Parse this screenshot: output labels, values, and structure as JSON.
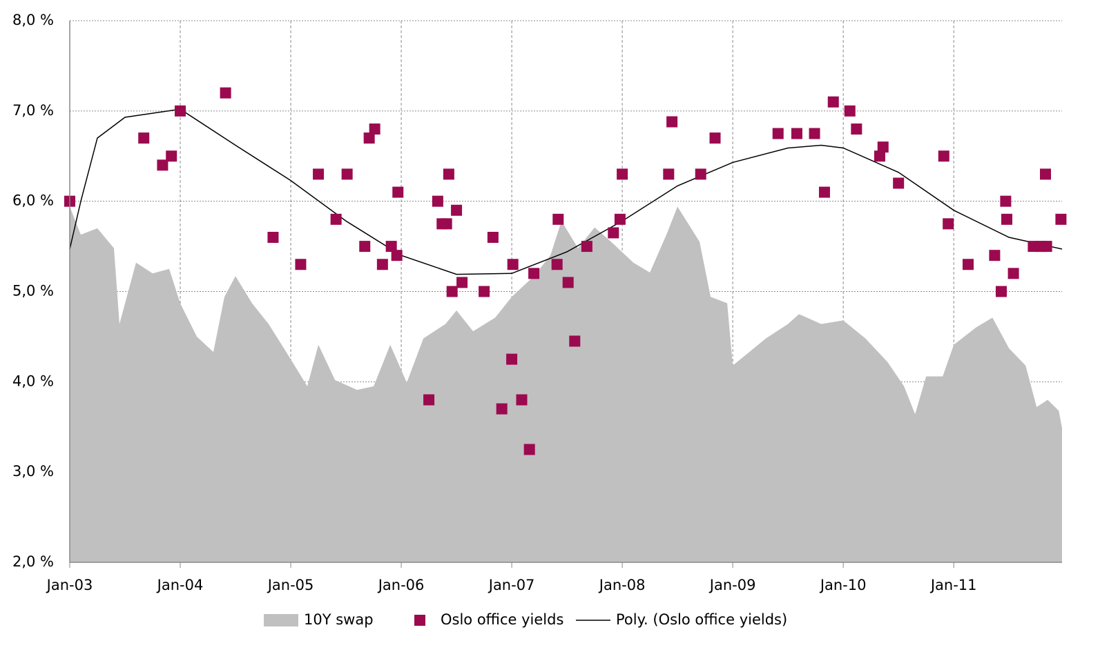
{
  "chart_data": {
    "type": "combo",
    "xlim": [
      2003,
      2011.98
    ],
    "xticks": [
      {
        "value": 2003,
        "label": "Jan-03"
      },
      {
        "value": 2004,
        "label": "Jan-04"
      },
      {
        "value": 2005,
        "label": "Jan-05"
      },
      {
        "value": 2006,
        "label": "Jan-06"
      },
      {
        "value": 2007,
        "label": "Jan-07"
      },
      {
        "value": 2008,
        "label": "Jan-08"
      },
      {
        "value": 2009,
        "label": "Jan-09"
      },
      {
        "value": 2010,
        "label": "Jan-10"
      },
      {
        "value": 2011,
        "label": "Jan-11"
      }
    ],
    "ylim": [
      2,
      8
    ],
    "yticks": [
      {
        "value": 2,
        "label": "2,0 %"
      },
      {
        "value": 3,
        "label": "3,0 %"
      },
      {
        "value": 4,
        "label": "4,0 %"
      },
      {
        "value": 5,
        "label": "5,0 %"
      },
      {
        "value": 6,
        "label": "6,0 %"
      },
      {
        "value": 7,
        "label": "7,0 %"
      },
      {
        "value": 8,
        "label": "8,0 %"
      }
    ],
    "grid": true,
    "legend": "bottom",
    "series": [
      {
        "name": "10Y swap",
        "type": "area",
        "color": "#c0c0c0",
        "x": [
          2003.0,
          2003.1,
          2003.25,
          2003.4,
          2003.45,
          2003.6,
          2003.75,
          2003.9,
          2004.0,
          2004.15,
          2004.3,
          2004.4,
          2004.5,
          2004.65,
          2004.8,
          2005.0,
          2005.15,
          2005.25,
          2005.4,
          2005.6,
          2005.75,
          2005.9,
          2006.05,
          2006.2,
          2006.4,
          2006.5,
          2006.65,
          2006.85,
          2007.0,
          2007.2,
          2007.35,
          2007.45,
          2007.6,
          2007.75,
          2007.9,
          2008.1,
          2008.25,
          2008.4,
          2008.5,
          2008.7,
          2008.8,
          2008.95,
          2009.0,
          2009.15,
          2009.3,
          2009.5,
          2009.6,
          2009.8,
          2010.0,
          2010.2,
          2010.4,
          2010.55,
          2010.65,
          2010.75,
          2010.9,
          2011.0,
          2011.2,
          2011.35,
          2011.5,
          2011.65,
          2011.75,
          2011.85,
          2011.95,
          2011.98
        ],
        "values": [
          5.94,
          5.63,
          5.7,
          5.48,
          4.64,
          5.32,
          5.2,
          5.25,
          4.87,
          4.5,
          4.33,
          4.94,
          5.17,
          4.87,
          4.64,
          4.25,
          3.95,
          4.41,
          4.02,
          3.91,
          3.95,
          4.41,
          3.99,
          4.48,
          4.64,
          4.79,
          4.56,
          4.71,
          4.94,
          5.17,
          5.4,
          5.78,
          5.48,
          5.71,
          5.55,
          5.32,
          5.21,
          5.63,
          5.94,
          5.55,
          4.94,
          4.87,
          4.18,
          4.33,
          4.48,
          4.64,
          4.75,
          4.64,
          4.68,
          4.48,
          4.22,
          3.95,
          3.64,
          4.06,
          4.06,
          4.41,
          4.6,
          4.71,
          4.37,
          4.18,
          3.72,
          3.8,
          3.68,
          3.49
        ]
      },
      {
        "name": "Oslo office yields",
        "type": "scatter",
        "color": "#9b0a4f",
        "x": [
          2003.0,
          2003.67,
          2003.84,
          2003.92,
          2004.0,
          2004.41,
          2004.84,
          2005.09,
          2005.25,
          2005.41,
          2005.51,
          2005.67,
          2005.71,
          2005.76,
          2005.83,
          2005.91,
          2005.96,
          2005.97,
          2006.25,
          2006.33,
          2006.37,
          2006.41,
          2006.43,
          2006.46,
          2006.5,
          2006.55,
          2006.75,
          2006.83,
          2006.91,
          2007.0,
          2007.01,
          2007.09,
          2007.16,
          2007.2,
          2007.41,
          2007.42,
          2007.51,
          2007.57,
          2007.68,
          2007.92,
          2007.98,
          2008.0,
          2008.42,
          2008.45,
          2008.71,
          2008.84,
          2009.41,
          2009.58,
          2009.74,
          2009.83,
          2009.91,
          2010.06,
          2010.12,
          2010.33,
          2010.36,
          2010.5,
          2010.91,
          2010.95,
          2011.13,
          2011.37,
          2011.43,
          2011.47,
          2011.48,
          2011.54,
          2011.72,
          2011.79,
          2011.83,
          2011.84,
          2011.97
        ],
        "values": [
          6.0,
          6.7,
          6.4,
          6.5,
          7.0,
          7.2,
          5.6,
          5.3,
          6.3,
          5.8,
          6.3,
          5.5,
          6.7,
          6.8,
          5.3,
          5.5,
          5.4,
          6.1,
          3.8,
          6.0,
          5.75,
          5.75,
          6.3,
          5.0,
          5.9,
          5.1,
          5.0,
          5.6,
          3.7,
          4.25,
          5.3,
          3.8,
          3.25,
          5.2,
          5.3,
          5.8,
          5.1,
          4.45,
          5.5,
          5.65,
          5.8,
          6.3,
          6.3,
          6.88,
          6.3,
          6.7,
          6.75,
          6.75,
          6.75,
          6.1,
          7.1,
          7.0,
          6.8,
          6.5,
          6.6,
          6.2,
          6.5,
          5.75,
          5.3,
          5.4,
          5.0,
          6.0,
          5.8,
          5.2,
          5.5,
          5.5,
          6.3,
          5.5,
          5.8
        ]
      },
      {
        "name": "Poly. (Oslo office yields)",
        "type": "line",
        "color": "#000000",
        "x": [
          2003.0,
          2003.1,
          2003.25,
          2003.5,
          2004.0,
          2004.5,
          2005.0,
          2005.5,
          2006.0,
          2006.5,
          2007.0,
          2007.5,
          2008.0,
          2008.5,
          2009.0,
          2009.5,
          2009.8,
          2010.0,
          2010.5,
          2011.0,
          2011.5,
          2011.98
        ],
        "values": [
          5.47,
          6.0,
          6.7,
          6.93,
          7.02,
          6.62,
          6.23,
          5.78,
          5.4,
          5.19,
          5.2,
          5.44,
          5.78,
          6.17,
          6.43,
          6.59,
          6.62,
          6.59,
          6.32,
          5.9,
          5.6,
          5.47
        ]
      }
    ]
  }
}
